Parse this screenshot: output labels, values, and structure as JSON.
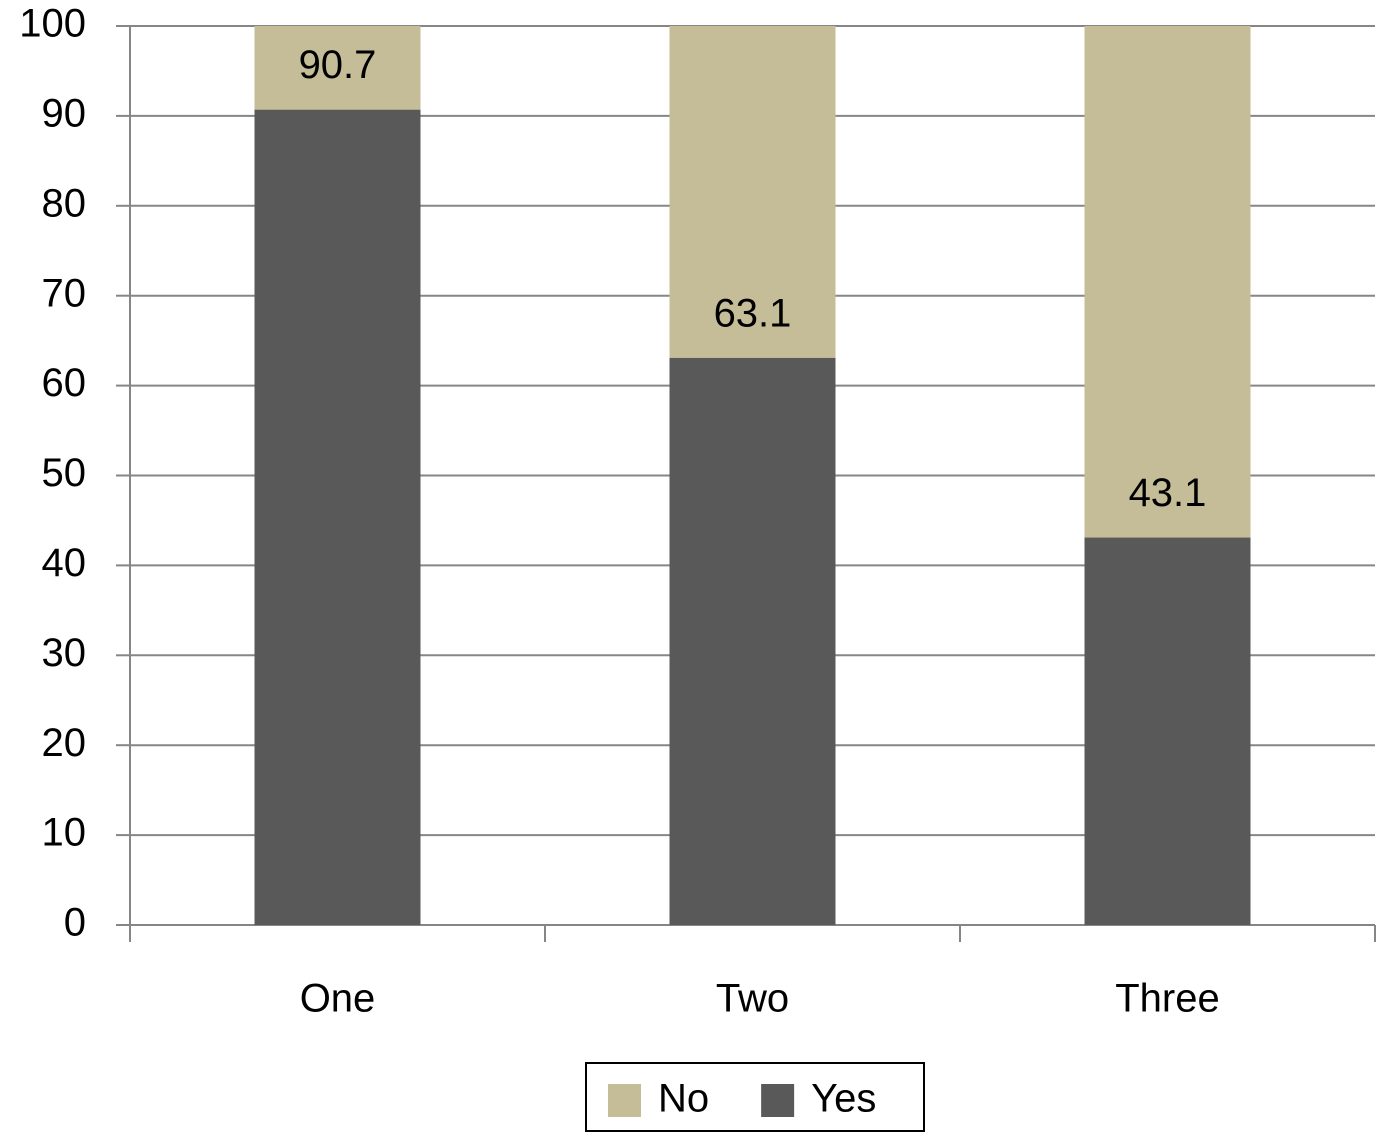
{
  "chart_data": {
    "type": "stacked_bar",
    "categories": [
      "One",
      "Two",
      "Three"
    ],
    "series": [
      {
        "name": "Yes",
        "color": "#595959",
        "values": [
          90.7,
          63.1,
          43.1
        ]
      },
      {
        "name": "No",
        "color": "#c4bd97",
        "values": [
          9.3,
          36.9,
          56.9
        ]
      }
    ],
    "data_labels_series": 0,
    "ylim": [
      0,
      100
    ],
    "yticks": [
      0,
      10,
      20,
      30,
      40,
      50,
      60,
      70,
      80,
      90,
      100
    ],
    "grid": true,
    "legend": "bottom"
  }
}
